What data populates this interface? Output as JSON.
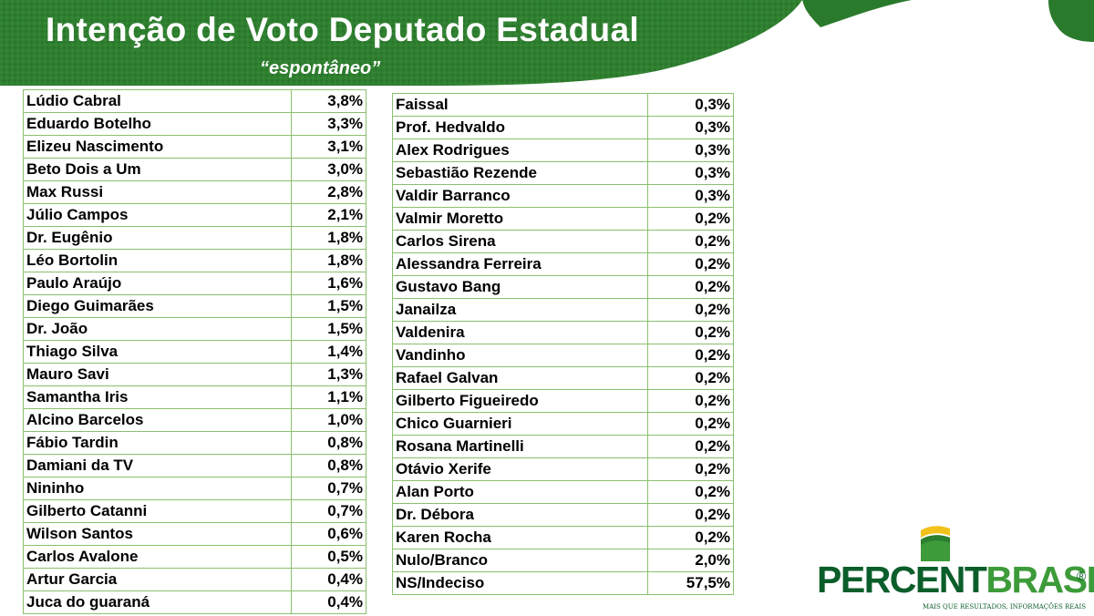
{
  "header": {
    "title": "Intenção de Voto Deputado Estadual",
    "subtitle": "“espontâneo”"
  },
  "colors": {
    "header_green": "#2e7d2e",
    "header_dark": "#1f5e22",
    "grid_border": "#8bbf6e",
    "logo_green": "#0b5e2a",
    "logo_light_green": "#3d9b3a",
    "logo_yellow": "#f2c21b"
  },
  "left_table": [
    {
      "name": "Lúdio Cabral",
      "value": "3,8%"
    },
    {
      "name": "Eduardo Botelho",
      "value": "3,3%"
    },
    {
      "name": "Elizeu Nascimento",
      "value": "3,1%"
    },
    {
      "name": "Beto Dois a Um",
      "value": "3,0%"
    },
    {
      "name": "Max Russi",
      "value": "2,8%"
    },
    {
      "name": "Júlio Campos",
      "value": "2,1%"
    },
    {
      "name": "Dr. Eugênio",
      "value": "1,8%"
    },
    {
      "name": "Léo Bortolin",
      "value": "1,8%"
    },
    {
      "name": "Paulo Araújo",
      "value": "1,6%"
    },
    {
      "name": "Diego Guimarães",
      "value": "1,5%"
    },
    {
      "name": "Dr. João",
      "value": "1,5%"
    },
    {
      "name": "Thiago Silva",
      "value": "1,4%"
    },
    {
      "name": "Mauro Savi",
      "value": "1,3%"
    },
    {
      "name": "Samantha Iris",
      "value": "1,1%"
    },
    {
      "name": "Alcino Barcelos",
      "value": "1,0%"
    },
    {
      "name": "Fábio Tardin",
      "value": "0,8%"
    },
    {
      "name": "Damiani da TV",
      "value": "0,8%"
    },
    {
      "name": "Nininho",
      "value": "0,7%"
    },
    {
      "name": "Gilberto Catanni",
      "value": "0,7%"
    },
    {
      "name": "Wilson Santos",
      "value": "0,6%"
    },
    {
      "name": "Carlos Avalone",
      "value": "0,5%"
    },
    {
      "name": "Artur Garcia",
      "value": "0,4%"
    },
    {
      "name": "Juca do guaraná",
      "value": "0,4%"
    }
  ],
  "right_table": [
    {
      "name": "Faissal",
      "value": "0,3%"
    },
    {
      "name": "Prof. Hedvaldo",
      "value": "0,3%"
    },
    {
      "name": "Alex Rodrigues",
      "value": "0,3%"
    },
    {
      "name": "Sebastião Rezende",
      "value": "0,3%"
    },
    {
      "name": "Valdir Barranco",
      "value": "0,3%"
    },
    {
      "name": "Valmir Moretto",
      "value": "0,2%"
    },
    {
      "name": "Carlos Sirena",
      "value": "0,2%"
    },
    {
      "name": "Alessandra Ferreira",
      "value": "0,2%"
    },
    {
      "name": "Gustavo Bang",
      "value": "0,2%"
    },
    {
      "name": "Janailza",
      "value": "0,2%"
    },
    {
      "name": "Valdenira",
      "value": "0,2%"
    },
    {
      "name": "Vandinho",
      "value": "0,2%"
    },
    {
      "name": "Rafael Galvan",
      "value": "0,2%"
    },
    {
      "name": "Gilberto Figueiredo",
      "value": "0,2%"
    },
    {
      "name": "Chico Guarnieri",
      "value": "0,2%"
    },
    {
      "name": "Rosana Martinelli",
      "value": "0,2%"
    },
    {
      "name": "Otávio Xerife",
      "value": "0,2%"
    },
    {
      "name": "Alan Porto",
      "value": "0,2%"
    },
    {
      "name": "Dr. Débora",
      "value": "0,2%"
    },
    {
      "name": "Karen Rocha",
      "value": "0,2%"
    },
    {
      "name": "Nulo/Branco",
      "value": "2,0%"
    },
    {
      "name": "NS/Indeciso",
      "value": "57,5%"
    }
  ],
  "logo": {
    "word_part1": "PERCENT",
    "word_part2": "BRASIL",
    "registered": "®",
    "tagline": "MAIS QUE RESULTADOS, INFORMAÇÕES REAIS"
  }
}
